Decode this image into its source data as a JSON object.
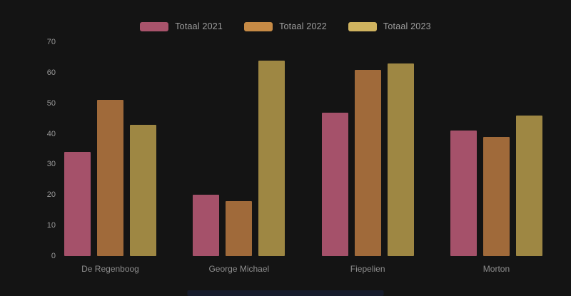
{
  "background": "#141414",
  "bottom_bar_color": "#161b2b",
  "chart_data": {
    "type": "bar",
    "title": "",
    "xlabel": "",
    "ylabel": "",
    "categories": [
      "De Regenboog",
      "George Michael",
      "Fiepelien",
      "Morton"
    ],
    "series": [
      {
        "name": "Totaal 2021",
        "bar_color": "#a5516a",
        "legend_color": "#a8536b",
        "values": [
          34,
          20,
          47,
          41
        ]
      },
      {
        "name": "Totaal 2022",
        "bar_color": "#a06a3a",
        "legend_color": "#c68a45",
        "values": [
          51,
          18,
          61,
          39
        ]
      },
      {
        "name": "Totaal 2023",
        "bar_color": "#9e8743",
        "legend_color": "#cfb35f",
        "values": [
          43,
          64,
          63,
          46
        ]
      }
    ],
    "yticks": [
      0,
      10,
      20,
      30,
      40,
      50,
      60,
      70
    ],
    "ylim": [
      0,
      70
    ],
    "grid": false,
    "legend_position": "top",
    "axis_text_color": "#989898",
    "category_text_color": "#8d8d8d",
    "legend_text_color": "#9e9e9e"
  }
}
